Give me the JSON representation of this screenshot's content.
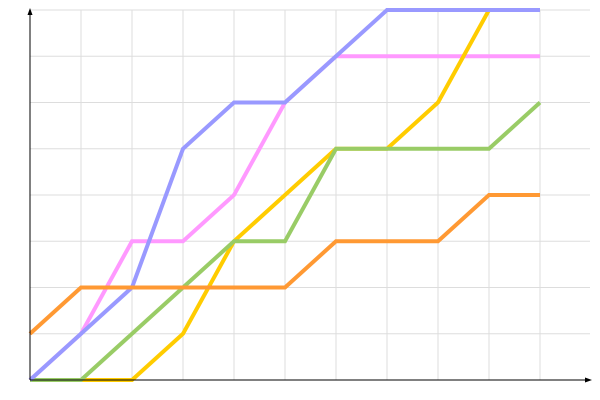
{
  "chart_data": {
    "type": "line",
    "title": "",
    "xlabel": "",
    "ylabel": "",
    "x": [
      0,
      1,
      2,
      3,
      4,
      5,
      6,
      7,
      8,
      9,
      10
    ],
    "xlim": [
      0,
      11
    ],
    "ylim": [
      0,
      8
    ],
    "grid": true,
    "legend": "none",
    "series": [
      {
        "color": "#ff99ff",
        "values": [
          0,
          1,
          3,
          3,
          4,
          6,
          7,
          7,
          7,
          7,
          7
        ]
      },
      {
        "color": "#ffcc00",
        "values": [
          0,
          0,
          0,
          1,
          3,
          4,
          5,
          5,
          6,
          8,
          null
        ]
      },
      {
        "color": "#99cc66",
        "values": [
          0,
          0,
          1,
          2,
          3,
          3,
          5,
          5,
          5,
          5,
          6
        ]
      },
      {
        "color": "#9999ff",
        "values": [
          0,
          1,
          2,
          5,
          6,
          6,
          7,
          8,
          8,
          8,
          8
        ]
      },
      {
        "color": "#ff9933",
        "values": [
          1,
          2,
          2,
          2,
          2,
          2,
          3,
          3,
          3,
          4,
          4
        ]
      }
    ]
  }
}
